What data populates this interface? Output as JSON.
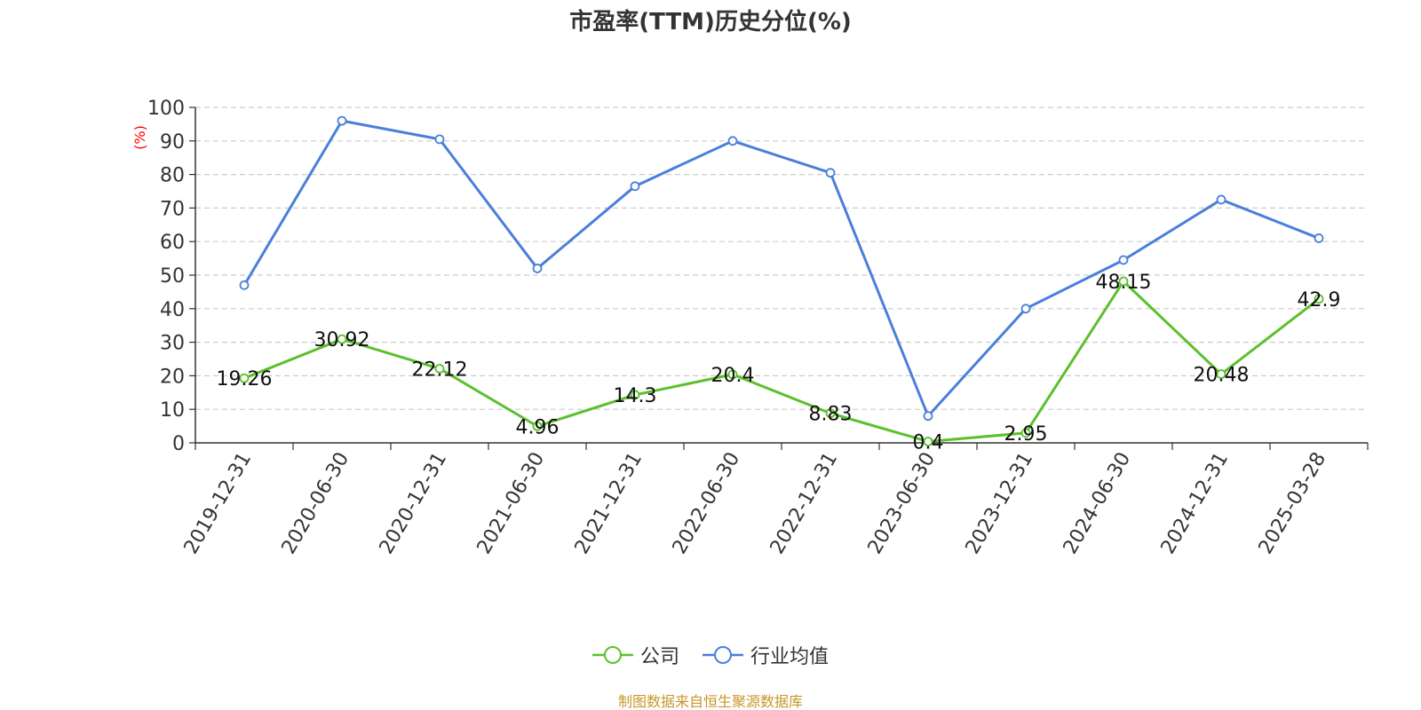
{
  "chart_data": {
    "type": "line",
    "title": "市盈率(TTM)历史分位(%)",
    "ylabel": "(%)",
    "ylim": [
      0,
      100
    ],
    "yticks": [
      0,
      10,
      20,
      30,
      40,
      50,
      60,
      70,
      80,
      90,
      100
    ],
    "grid": true,
    "legend_position": "bottom",
    "categories": [
      "2019-12-31",
      "2020-06-30",
      "2020-12-31",
      "2021-06-30",
      "2021-12-31",
      "2022-06-30",
      "2022-12-31",
      "2023-06-30",
      "2023-12-31",
      "2024-06-30",
      "2024-12-31",
      "2025-03-28"
    ],
    "series": [
      {
        "name": "公司",
        "color": "#5cc02c",
        "show_labels": true,
        "values": [
          19.26,
          30.92,
          22.12,
          4.96,
          14.3,
          20.4,
          8.83,
          0.4,
          2.95,
          48.15,
          20.48,
          42.9
        ]
      },
      {
        "name": "行业均值",
        "color": "#4a7fdb",
        "show_labels": false,
        "values": [
          47,
          96,
          90.5,
          52,
          76.5,
          90,
          80.5,
          8,
          40,
          54.5,
          72.5,
          61
        ]
      }
    ]
  },
  "source_note": "制图数据来自恒生聚源数据库"
}
